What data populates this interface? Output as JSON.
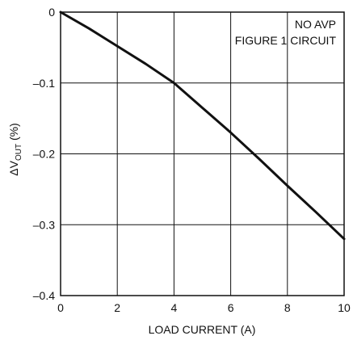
{
  "chart_data": {
    "type": "line",
    "xlabel": "LOAD CURRENT (A)",
    "ylabel": {
      "prefix": "ΔV",
      "sub": "OUT",
      "suffix": " (%)"
    },
    "xlim": [
      0,
      10
    ],
    "ylim": [
      -0.4,
      0
    ],
    "x_ticks": [
      0,
      2,
      4,
      6,
      8,
      10
    ],
    "x_tick_labels": [
      "0",
      "2",
      "4",
      "6",
      "8",
      "10"
    ],
    "y_ticks": [
      0,
      -0.1,
      -0.2,
      -0.3,
      -0.4
    ],
    "y_tick_labels": [
      "0",
      "–0.1",
      "–0.2",
      "–0.3",
      "–0.4"
    ],
    "grid": true,
    "annotations": [
      "NO AVP",
      "FIGURE 1 CIRCUIT"
    ],
    "series": [
      {
        "x": [
          0,
          1,
          2,
          3,
          4,
          5,
          6,
          7,
          8,
          9,
          10
        ],
        "y": [
          0,
          -0.023,
          -0.048,
          -0.073,
          -0.1,
          -0.135,
          -0.17,
          -0.207,
          -0.245,
          -0.282,
          -0.32
        ],
        "color": "#111111"
      }
    ]
  }
}
